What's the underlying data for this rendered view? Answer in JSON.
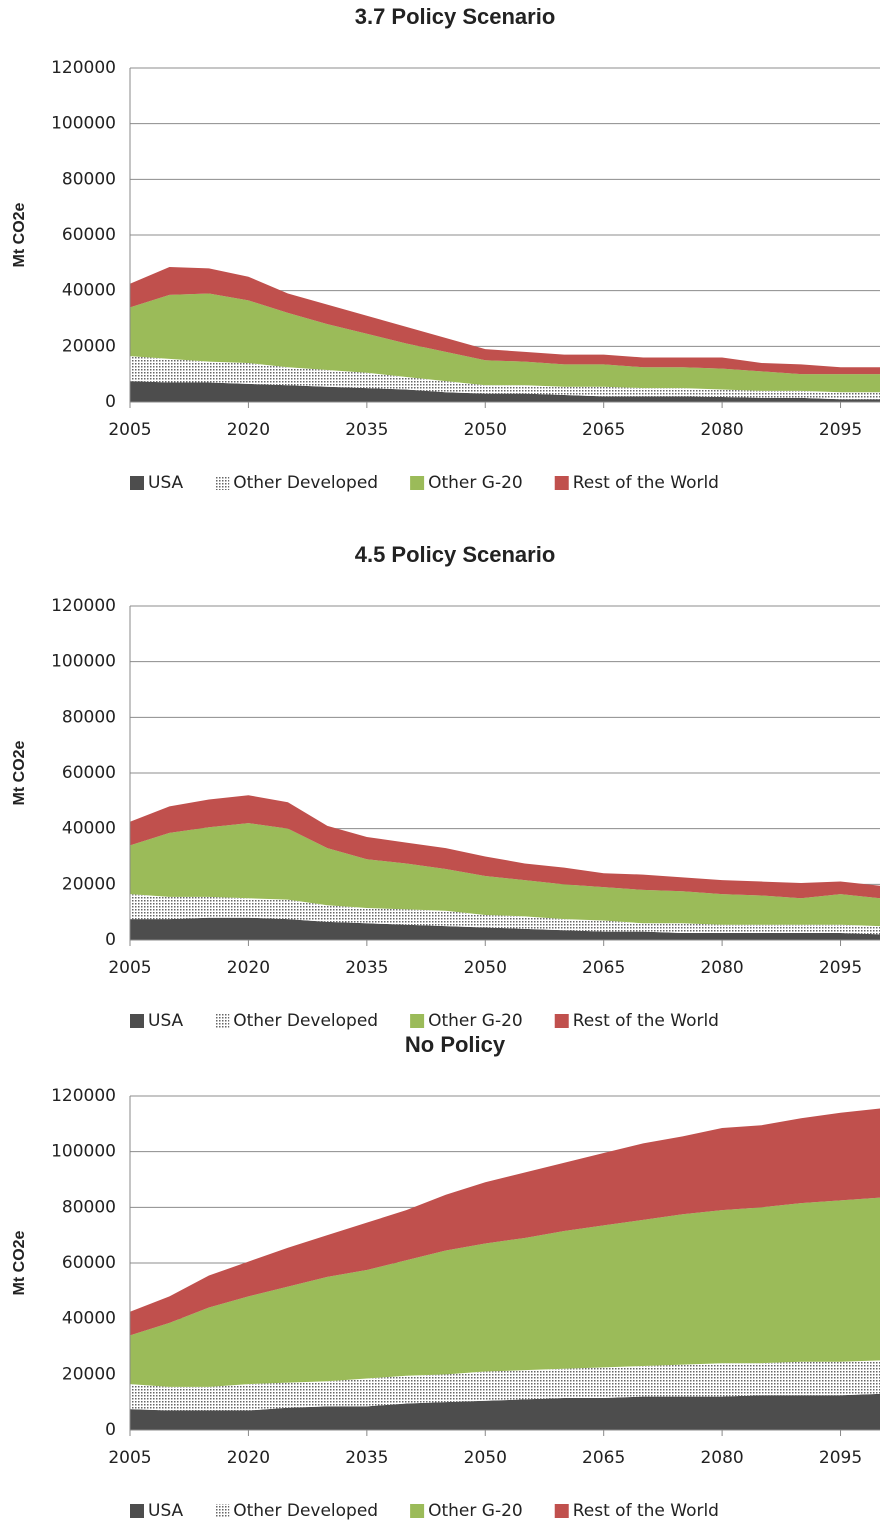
{
  "chart_data": [
    {
      "type": "area",
      "stacked": true,
      "title": "3.7 Policy Scenario",
      "y_label": "Mt CO2e",
      "x": [
        2005,
        2010,
        2015,
        2020,
        2025,
        2030,
        2035,
        2040,
        2045,
        2050,
        2055,
        2060,
        2065,
        2070,
        2075,
        2080,
        2085,
        2090,
        2095,
        2100
      ],
      "xlim": [
        2005,
        2100
      ],
      "xticks": [
        2005,
        2020,
        2035,
        2050,
        2065,
        2080,
        2095
      ],
      "ylim": [
        0,
        120000
      ],
      "yticks": [
        0,
        20000,
        40000,
        60000,
        80000,
        100000,
        120000
      ],
      "grid": true,
      "legend": "bottom",
      "series": [
        {
          "name": "USA",
          "color": "#4d4d4d",
          "values": [
            7500,
            7000,
            7000,
            6500,
            6000,
            5500,
            5000,
            4500,
            3500,
            3000,
            3000,
            2500,
            2000,
            2000,
            2000,
            1800,
            1500,
            1500,
            1000,
            1000
          ]
        },
        {
          "name": "Other Developed",
          "color": "#666666",
          "pattern": "dots",
          "values": [
            9000,
            8500,
            7500,
            7500,
            6500,
            6000,
            5500,
            4500,
            4000,
            3000,
            3000,
            3000,
            3500,
            3000,
            3000,
            2700,
            2500,
            2500,
            2500,
            2500
          ]
        },
        {
          "name": "Other G-20",
          "color": "#9bbb59",
          "values": [
            17500,
            23000,
            24500,
            22500,
            19500,
            16500,
            14000,
            12000,
            10500,
            9000,
            8500,
            8000,
            8000,
            7500,
            7500,
            7500,
            7000,
            6000,
            6500,
            6500
          ]
        },
        {
          "name": "Rest of the World",
          "color": "#c0504d",
          "values": [
            8500,
            10000,
            9000,
            8500,
            7000,
            7000,
            6500,
            6000,
            5000,
            4000,
            3500,
            3500,
            3500,
            3500,
            3500,
            4000,
            3000,
            3500,
            2500,
            2500
          ]
        }
      ]
    },
    {
      "type": "area",
      "stacked": true,
      "title": "4.5 Policy Scenario",
      "y_label": "Mt CO2e",
      "x": [
        2005,
        2010,
        2015,
        2020,
        2025,
        2030,
        2035,
        2040,
        2045,
        2050,
        2055,
        2060,
        2065,
        2070,
        2075,
        2080,
        2085,
        2090,
        2095,
        2100
      ],
      "xlim": [
        2005,
        2100
      ],
      "xticks": [
        2005,
        2020,
        2035,
        2050,
        2065,
        2080,
        2095
      ],
      "ylim": [
        0,
        120000
      ],
      "yticks": [
        0,
        20000,
        40000,
        60000,
        80000,
        100000,
        120000
      ],
      "grid": true,
      "legend": "bottom",
      "series": [
        {
          "name": "USA",
          "color": "#4d4d4d",
          "values": [
            7500,
            7500,
            8000,
            8000,
            7500,
            6500,
            6000,
            5500,
            5000,
            4500,
            4000,
            3500,
            3000,
            3000,
            2500,
            2500,
            2500,
            2500,
            2500,
            2000
          ]
        },
        {
          "name": "Other Developed",
          "color": "#666666",
          "pattern": "dots",
          "values": [
            9000,
            8000,
            7500,
            7000,
            7000,
            6000,
            5500,
            5500,
            5500,
            4500,
            4500,
            4000,
            4000,
            3000,
            3500,
            3000,
            3000,
            3000,
            3000,
            3000
          ]
        },
        {
          "name": "Other G-20",
          "color": "#9bbb59",
          "values": [
            17500,
            23000,
            25000,
            27000,
            25500,
            20500,
            17500,
            16500,
            15000,
            14000,
            13000,
            12500,
            12000,
            12000,
            11500,
            11000,
            10500,
            9500,
            11000,
            10000
          ]
        },
        {
          "name": "Rest of the World",
          "color": "#c0504d",
          "values": [
            8500,
            9500,
            10000,
            10000,
            9500,
            8000,
            8000,
            7500,
            7500,
            7000,
            6000,
            6000,
            5000,
            5500,
            5000,
            5000,
            5000,
            5500,
            4500,
            4500
          ]
        }
      ]
    },
    {
      "type": "area",
      "stacked": true,
      "title": "No Policy",
      "y_label": "Mt CO2e",
      "x": [
        2005,
        2010,
        2015,
        2020,
        2025,
        2030,
        2035,
        2040,
        2045,
        2050,
        2055,
        2060,
        2065,
        2070,
        2075,
        2080,
        2085,
        2090,
        2095,
        2100
      ],
      "xlim": [
        2005,
        2100
      ],
      "xticks": [
        2005,
        2020,
        2035,
        2050,
        2065,
        2080,
        2095
      ],
      "ylim": [
        0,
        120000
      ],
      "yticks": [
        0,
        20000,
        40000,
        60000,
        80000,
        100000,
        120000
      ],
      "grid": true,
      "legend": "bottom",
      "series": [
        {
          "name": "USA",
          "color": "#4d4d4d",
          "values": [
            7500,
            7000,
            7000,
            7000,
            8000,
            8500,
            8500,
            9500,
            10000,
            10500,
            11000,
            11500,
            11500,
            12000,
            12000,
            12000,
            12500,
            12500,
            12500,
            13000
          ]
        },
        {
          "name": "Other Developed",
          "color": "#666666",
          "pattern": "dots",
          "values": [
            9000,
            8500,
            8500,
            9500,
            9000,
            9000,
            10000,
            10000,
            10000,
            10500,
            10500,
            10500,
            11000,
            11000,
            11500,
            12000,
            11500,
            12000,
            12000,
            12000
          ]
        },
        {
          "name": "Other G-20",
          "color": "#9bbb59",
          "values": [
            17500,
            23000,
            28500,
            31500,
            34500,
            37500,
            39000,
            41500,
            44500,
            46000,
            47500,
            49500,
            51000,
            52500,
            54000,
            55000,
            56000,
            57000,
            58000,
            58500
          ]
        },
        {
          "name": "Rest of the World",
          "color": "#c0504d",
          "values": [
            8500,
            9500,
            11500,
            12500,
            14000,
            15000,
            17000,
            18000,
            20000,
            22000,
            23500,
            24500,
            26000,
            27500,
            28000,
            29500,
            29500,
            30500,
            31500,
            32000
          ]
        }
      ]
    }
  ]
}
